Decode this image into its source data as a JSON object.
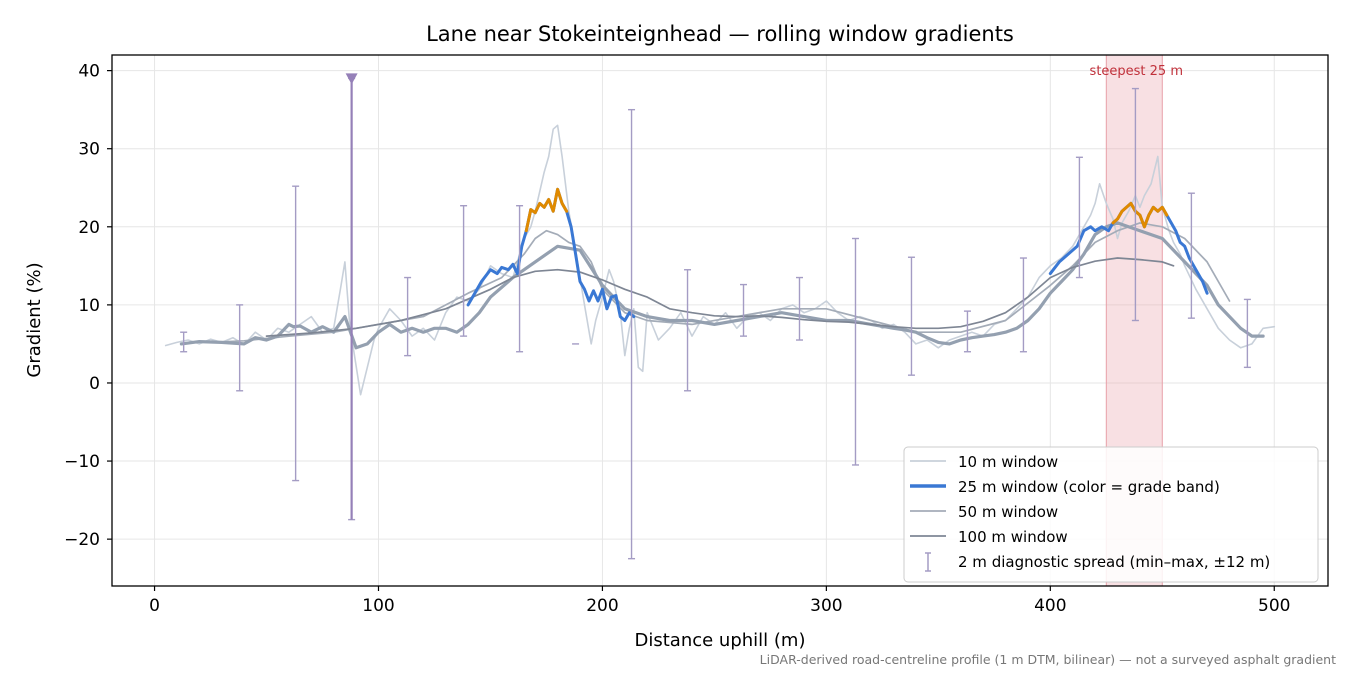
{
  "chart_data": {
    "type": "line",
    "title": "Lane near Stokeinteignhead — rolling window gradients",
    "xlabel": "Distance uphill (m)",
    "ylabel": "Gradient (%)",
    "xlim": [
      -19,
      524
    ],
    "ylim": [
      -26,
      42
    ],
    "xticks": [
      0,
      100,
      200,
      300,
      400,
      500
    ],
    "yticks": [
      -20,
      -10,
      0,
      10,
      20,
      30,
      40
    ],
    "grid": true,
    "legend_position": "lower-right",
    "footnote": "LiDAR-derived road-centreline profile (1 m DTM, bilinear) — not a surveyed asphalt gradient",
    "highlight": {
      "label": "steepest 25 m",
      "x_range": [
        425,
        450
      ],
      "color": "#e8a0a8"
    },
    "colors": {
      "w10": "#c8d0da",
      "w25_base": "#3a78d4",
      "w25_steep": "#e08a00",
      "w50": "#a4acb8",
      "w50_thick": "#94a0b0",
      "w100": "#7e8694",
      "spread": "#a49cc4",
      "outlier": "#9580b8"
    },
    "series": [
      {
        "name": "10 m window",
        "style": "w10",
        "x": [
          5,
          10,
          15,
          20,
          25,
          30,
          35,
          40,
          45,
          50,
          55,
          60,
          65,
          70,
          75,
          80,
          83,
          85,
          87,
          89,
          92,
          95,
          98,
          100,
          105,
          110,
          115,
          120,
          125,
          130,
          135,
          140,
          145,
          150,
          155,
          160,
          165,
          168,
          170,
          172,
          174,
          176,
          178,
          180,
          182,
          185,
          188,
          190,
          192,
          195,
          197,
          200,
          203,
          205,
          208,
          210,
          212,
          214,
          216,
          218,
          220,
          225,
          230,
          235,
          240,
          245,
          250,
          255,
          260,
          265,
          270,
          275,
          280,
          285,
          290,
          295,
          300,
          305,
          310,
          315,
          320,
          325,
          330,
          335,
          340,
          345,
          350,
          355,
          360,
          365,
          370,
          375,
          380,
          385,
          390,
          395,
          400,
          405,
          410,
          415,
          418,
          420,
          422,
          425,
          428,
          430,
          432,
          435,
          438,
          440,
          442,
          445,
          448,
          450,
          453,
          455,
          458,
          460,
          465,
          470,
          475,
          480,
          485,
          490,
          495,
          500
        ],
        "y": [
          4.8,
          5.2,
          5.5,
          5.0,
          5.6,
          5.2,
          5.8,
          4.9,
          6.5,
          5.5,
          7.0,
          6.5,
          7.5,
          8.5,
          6.5,
          7.0,
          12.0,
          15.5,
          8.0,
          4.0,
          -1.5,
          2.0,
          5.5,
          7.0,
          9.5,
          8.0,
          6.0,
          7.0,
          5.5,
          9.0,
          11.0,
          10.5,
          12.0,
          15.0,
          14.0,
          13.5,
          18.5,
          20.0,
          22.0,
          24.5,
          27.0,
          29.0,
          32.5,
          33.0,
          29.0,
          22.0,
          17.0,
          13.5,
          10.0,
          5.0,
          8.0,
          11.0,
          14.5,
          13.0,
          9.0,
          3.5,
          7.0,
          9.5,
          2.0,
          1.5,
          9.0,
          5.5,
          7.0,
          9.0,
          6.0,
          8.5,
          7.5,
          9.0,
          7.0,
          8.5,
          9.0,
          8.0,
          9.5,
          10.0,
          9.0,
          9.5,
          10.5,
          9.0,
          8.0,
          8.5,
          8.0,
          7.0,
          7.5,
          6.5,
          5.0,
          5.5,
          4.5,
          5.5,
          6.0,
          6.5,
          6.0,
          7.5,
          8.0,
          9.5,
          11.0,
          13.5,
          15.0,
          16.0,
          17.5,
          20.0,
          21.5,
          23.0,
          25.5,
          23.0,
          21.0,
          18.5,
          20.5,
          22.0,
          24.0,
          22.5,
          24.0,
          25.5,
          29.0,
          22.5,
          19.5,
          18.0,
          16.5,
          15.0,
          12.0,
          9.5,
          7.0,
          5.5,
          4.5,
          5.0,
          7.0,
          7.2
        ]
      },
      {
        "name": "25 m window (color = grade band)",
        "style": "w25",
        "x": [
          140,
          143,
          146,
          150,
          153,
          155,
          158,
          160,
          162,
          164,
          166,
          168,
          170,
          172,
          174,
          176,
          178,
          180,
          182,
          184,
          186,
          188,
          190,
          192,
          194,
          196,
          198,
          200,
          202,
          204,
          206,
          208,
          210,
          212,
          214
        ],
        "y": [
          10.0,
          11.5,
          13.0,
          14.5,
          14.0,
          14.8,
          14.5,
          15.2,
          14.0,
          17.5,
          19.5,
          22.2,
          21.8,
          23.0,
          22.5,
          23.5,
          22.0,
          24.8,
          23.0,
          22.0,
          20.0,
          16.5,
          13.0,
          12.0,
          10.5,
          11.8,
          10.5,
          12.0,
          9.5,
          11.0,
          11.2,
          8.5,
          8.0,
          9.0,
          8.5
        ]
      },
      {
        "name": "",
        "style": "w25_lower",
        "x": [
          400,
          404,
          408,
          412,
          415,
          418,
          420,
          423,
          426,
          428,
          430,
          432,
          434,
          436,
          438,
          440,
          442,
          444,
          446,
          448,
          450,
          452,
          454,
          456,
          458,
          460,
          462,
          465,
          468,
          470
        ],
        "y": [
          14.0,
          15.5,
          16.5,
          17.5,
          19.5,
          20.0,
          19.5,
          20.0,
          19.5,
          20.5,
          21.0,
          22.0,
          22.5,
          23.0,
          22.0,
          21.5,
          20.0,
          21.5,
          22.5,
          22.0,
          22.5,
          21.5,
          20.5,
          19.5,
          18.0,
          17.5,
          16.0,
          14.5,
          13.0,
          11.5
        ]
      },
      {
        "name": "50 m window",
        "style": "w50",
        "x": [
          25,
          40,
          60,
          80,
          100,
          120,
          140,
          155,
          165,
          170,
          175,
          180,
          185,
          190,
          195,
          200,
          210,
          220,
          240,
          260,
          280,
          300,
          320,
          340,
          360,
          380,
          400,
          410,
          420,
          430,
          440,
          450,
          460,
          470,
          480
        ],
        "y": [
          5.2,
          5.4,
          6.0,
          6.5,
          7.5,
          8.5,
          11.5,
          13.5,
          16.5,
          18.5,
          19.5,
          19.0,
          18.0,
          17.5,
          15.5,
          12.0,
          9.0,
          8.0,
          7.5,
          8.5,
          9.5,
          9.5,
          8.0,
          6.5,
          6.5,
          8.0,
          12.5,
          15.0,
          18.0,
          19.5,
          20.5,
          20.0,
          18.5,
          15.5,
          10.5
        ]
      },
      {
        "name": "",
        "style": "w50_thick",
        "x": [
          12,
          20,
          30,
          40,
          45,
          50,
          55,
          60,
          62,
          65,
          70,
          72,
          75,
          80,
          85,
          90,
          95,
          100,
          105,
          110,
          115,
          120,
          125,
          130,
          135,
          140,
          145,
          150,
          160,
          170,
          180,
          190,
          200,
          210,
          220,
          230,
          240,
          250,
          260,
          270,
          280,
          290,
          300,
          310,
          320,
          330,
          335,
          340,
          345,
          350,
          355,
          360,
          365,
          370,
          375,
          380,
          385,
          390,
          395,
          400,
          405,
          410,
          415,
          420,
          425,
          430,
          440,
          450,
          460,
          470,
          475,
          480,
          485,
          490,
          495
        ],
        "y": [
          5.0,
          5.3,
          5.2,
          5.0,
          5.8,
          5.5,
          6.0,
          7.5,
          7.2,
          7.3,
          6.5,
          6.8,
          7.2,
          6.5,
          8.5,
          4.5,
          5.0,
          6.5,
          7.5,
          6.5,
          7.0,
          6.5,
          7.0,
          7.0,
          6.5,
          7.5,
          9.0,
          11.0,
          13.5,
          15.5,
          17.5,
          17.0,
          12.5,
          9.5,
          8.5,
          8.0,
          8.0,
          7.5,
          8.0,
          8.5,
          9.0,
          8.5,
          8.0,
          8.0,
          7.5,
          7.0,
          6.8,
          6.5,
          5.8,
          5.2,
          5.0,
          5.5,
          5.8,
          6.0,
          6.2,
          6.5,
          7.0,
          8.0,
          9.5,
          11.5,
          13.0,
          14.5,
          16.5,
          19.0,
          20.0,
          20.5,
          19.5,
          18.5,
          15.5,
          12.5,
          10.0,
          8.5,
          7.0,
          6.0,
          6.0
        ]
      },
      {
        "name": "100 m window",
        "style": "w100",
        "x": [
          50,
          70,
          90,
          110,
          130,
          150,
          160,
          170,
          180,
          190,
          200,
          210,
          220,
          230,
          240,
          250,
          260,
          270,
          280,
          290,
          300,
          310,
          320,
          330,
          340,
          350,
          360,
          370,
          380,
          390,
          400,
          410,
          420,
          430,
          440,
          450,
          455
        ],
        "y": [
          6.0,
          6.4,
          7.0,
          8.0,
          9.5,
          12.0,
          13.5,
          14.3,
          14.5,
          14.2,
          13.2,
          12.0,
          11.0,
          9.5,
          9.0,
          8.6,
          8.5,
          8.6,
          8.4,
          8.1,
          7.9,
          7.8,
          7.5,
          7.2,
          7.0,
          7.0,
          7.2,
          7.9,
          9.0,
          11.0,
          13.5,
          14.8,
          15.6,
          16.0,
          15.8,
          15.5,
          15.0
        ]
      }
    ],
    "steep_segments": [
      [
        166,
        184
      ],
      [
        428,
        452
      ]
    ],
    "steep_threshold": 20,
    "spread_bars": {
      "name": "2 m diagnostic spread (min–max, ±12 m)",
      "x": [
        13,
        38,
        63,
        88,
        113,
        138,
        163,
        188,
        213,
        238,
        263,
        288,
        313,
        338,
        363,
        388,
        413,
        438,
        463,
        488
      ],
      "low": [
        4.0,
        -1.0,
        -12.5,
        -17.5,
        3.5,
        6.0,
        4.0,
        5.0,
        -22.5,
        -1.0,
        6.0,
        5.5,
        -10.5,
        1.0,
        4.0,
        4.0,
        13.5,
        8.0,
        8.3,
        2.0
      ],
      "high": [
        6.5,
        10.0,
        25.2,
        39.0,
        13.5,
        22.7,
        22.7,
        5.0,
        35.0,
        14.5,
        12.6,
        13.5,
        18.5,
        16.1,
        9.2,
        16.0,
        28.9,
        37.7,
        24.3,
        10.7
      ]
    },
    "outlier_marker": {
      "x": 88,
      "y": 39
    }
  }
}
